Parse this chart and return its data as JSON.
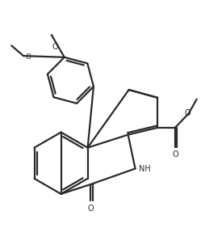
{
  "bg_color": "#ffffff",
  "line_color": "#2a2a2a",
  "lw": 1.6,
  "figsize": [
    2.49,
    3.03
  ],
  "dpi": 100,
  "xlim": [
    0,
    10
  ],
  "ylim": [
    0,
    12
  ]
}
